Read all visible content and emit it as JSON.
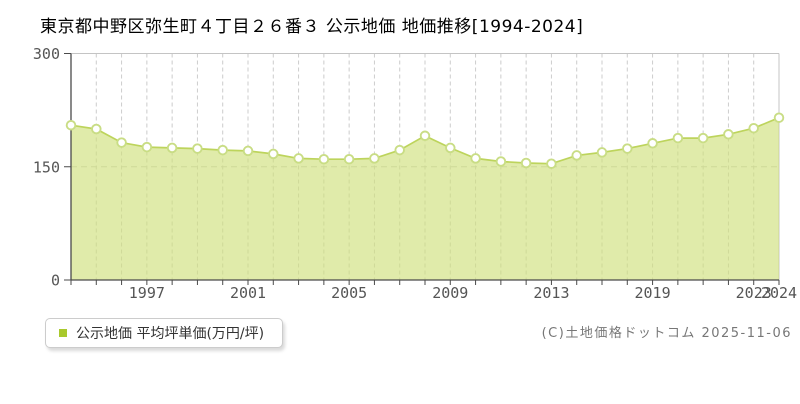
{
  "title": "東京都中野区弥生町４丁目２６番３ 公示地価 地価推移[1994-2024]",
  "legend": {
    "label": "公示地価 平均坪単価(万円/坪)",
    "marker_color": "#a9c92d"
  },
  "copyright": "(C)土地価格ドットコム 2025-11-06",
  "colors": {
    "line": "#bdd45c",
    "area_fill": "#cfe07c",
    "area_fill_opacity": 0.65,
    "marker_ring": "#c9dd85",
    "marker_fill": "#ffffff",
    "grid": "#cccccc",
    "border": "#c4c4c4",
    "axis": "#4a4a4a",
    "tick_text": "#555555"
  },
  "chart_data": {
    "type": "area",
    "title": "東京都中野区弥生町４丁目２６番３ 公示地価 地価推移[1994-2024]",
    "ylabel": "平均坪単価(万円/坪)",
    "xlabel": "",
    "ylim": [
      0,
      300
    ],
    "yticks": [
      0,
      150,
      300
    ],
    "grid": true,
    "legend_position": "bottom-left",
    "x_tick_labels": [
      "1997",
      "2001",
      "2005",
      "2009",
      "2013",
      "2019",
      "2023",
      "2024"
    ],
    "points": [
      {
        "x": "1994",
        "y": 205
      },
      {
        "x": "1995",
        "y": 200
      },
      {
        "x": "1996",
        "y": 182
      },
      {
        "x": "1997",
        "y": 176
      },
      {
        "x": "1998",
        "y": 175
      },
      {
        "x": "1999",
        "y": 174
      },
      {
        "x": "2000",
        "y": 172
      },
      {
        "x": "2001",
        "y": 171
      },
      {
        "x": "2002",
        "y": 167
      },
      {
        "x": "2003",
        "y": 161
      },
      {
        "x": "2004",
        "y": 160
      },
      {
        "x": "2005",
        "y": 160
      },
      {
        "x": "2006",
        "y": 161
      },
      {
        "x": "2007",
        "y": 172
      },
      {
        "x": "2008",
        "y": 191
      },
      {
        "x": "2009",
        "y": 175
      },
      {
        "x": "2010",
        "y": 161
      },
      {
        "x": "2011",
        "y": 157
      },
      {
        "x": "2012",
        "y": 155
      },
      {
        "x": "2013",
        "y": 154
      },
      {
        "x": null,
        "y": 165
      },
      {
        "x": null,
        "y": 169
      },
      {
        "x": null,
        "y": 174
      },
      {
        "x": "2019",
        "y": 181
      },
      {
        "x": "2020",
        "y": 188
      },
      {
        "x": "2021",
        "y": 188
      },
      {
        "x": "2022",
        "y": 193
      },
      {
        "x": "2023",
        "y": 201
      },
      {
        "x": "2024",
        "y": 215
      }
    ]
  }
}
